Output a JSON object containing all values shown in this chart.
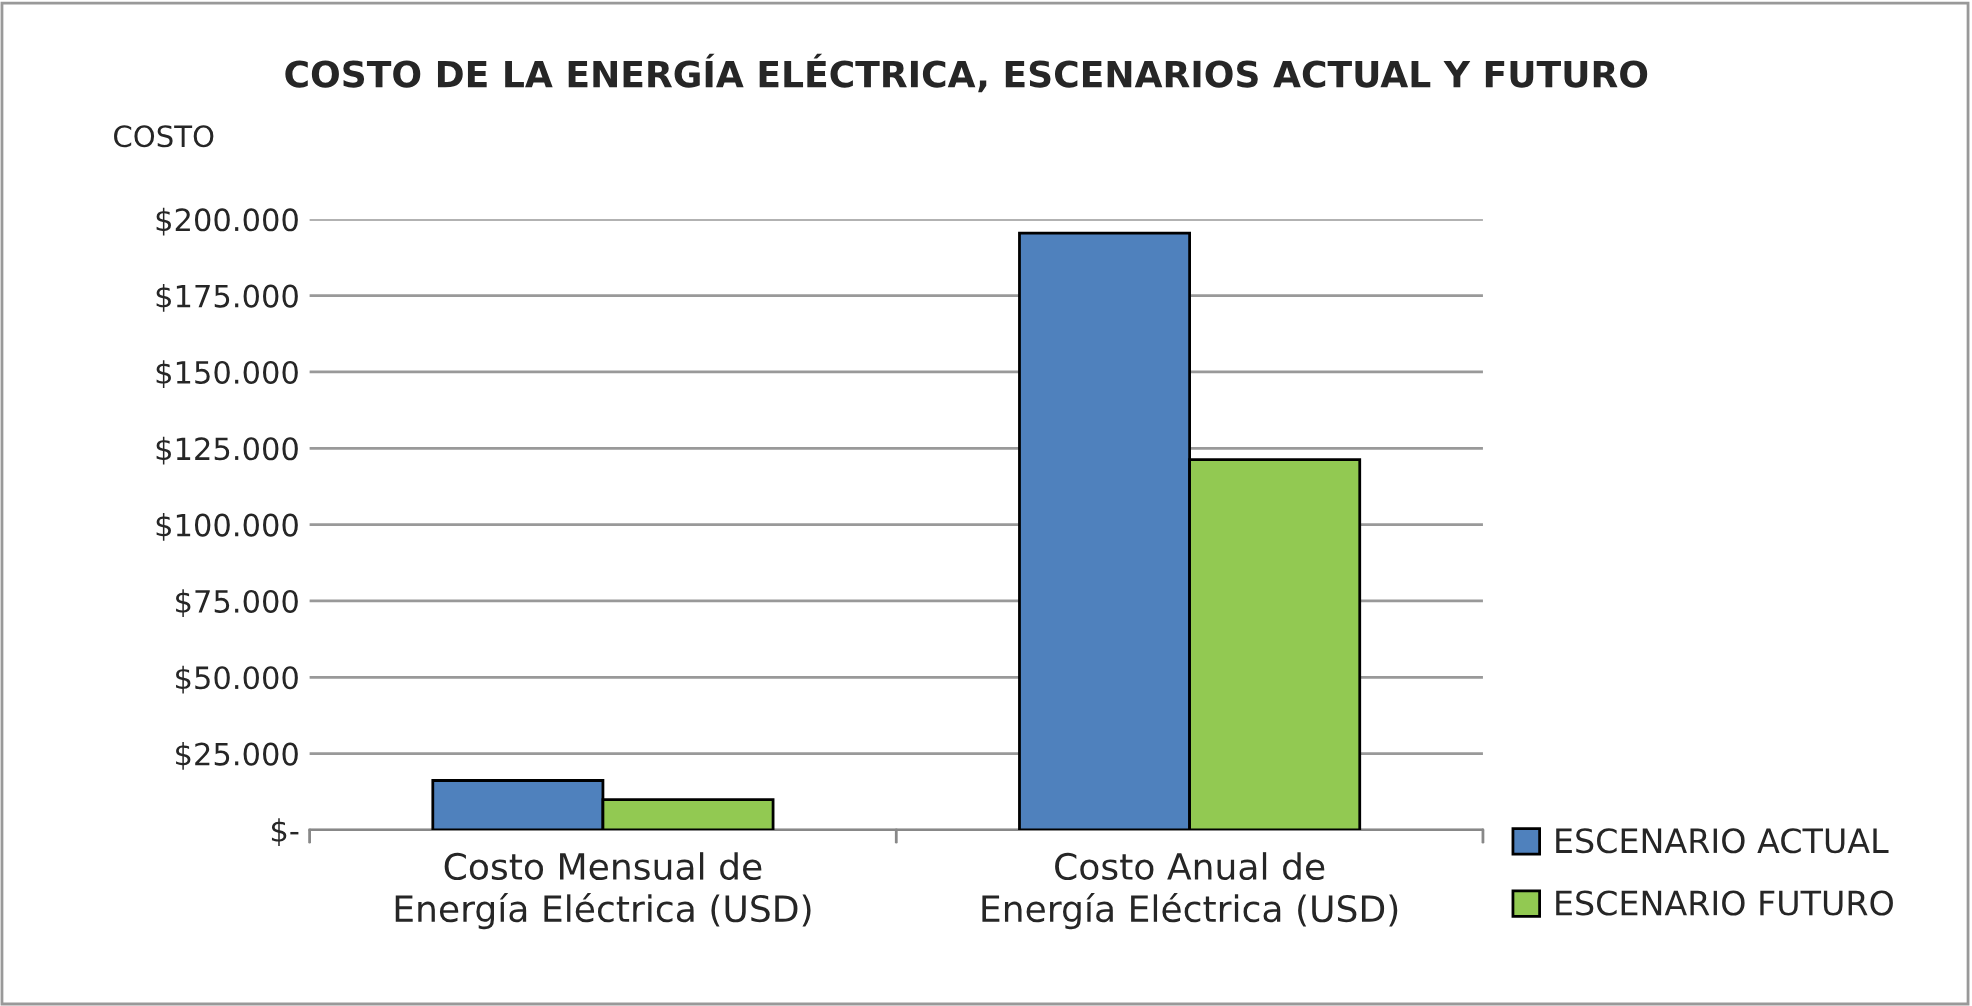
{
  "chart_data": {
    "type": "bar",
    "title": "COSTO DE LA ENERGÍA ELÉCTRICA, ESCENARIOS ACTUAL Y FUTURO",
    "ylabel": "COSTO",
    "categories": [
      "Costo Mensual de Energía Eléctrica (USD)",
      "Costo Anual de Energía Eléctrica (USD)"
    ],
    "series": [
      {
        "name": "ESCENARIO ACTUAL",
        "color": "#4f81bd",
        "values": [
          16200,
          195500
        ]
      },
      {
        "name": "ESCENARIO FUTURO",
        "color": "#92c952",
        "values": [
          9900,
          121300
        ]
      }
    ],
    "ylim": [
      0,
      200000
    ],
    "yticks": [
      {
        "value": 0,
        "label": "$-"
      },
      {
        "value": 25000,
        "label": "$25.000"
      },
      {
        "value": 50000,
        "label": "$50.000"
      },
      {
        "value": 75000,
        "label": "$75.000"
      },
      {
        "value": 100000,
        "label": "$100.000"
      },
      {
        "value": 125000,
        "label": "$125.000"
      },
      {
        "value": 150000,
        "label": "$150.000"
      },
      {
        "value": 175000,
        "label": "$175.000"
      },
      {
        "value": 200000,
        "label": "$200.000"
      }
    ],
    "grid": "y",
    "legend": "bottom right"
  }
}
